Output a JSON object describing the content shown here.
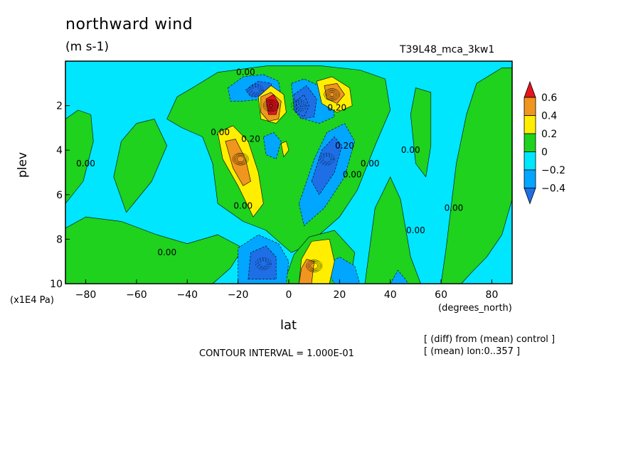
{
  "header": {
    "title": "northward wind",
    "units": "(m s-1)",
    "run_name": "T39L48_mca_3kw1"
  },
  "footer": {
    "contour_interval": "CONTOUR INTERVAL = 1.000E-01",
    "diff_note": "[ (diff) from (mean) control ]",
    "mean_note": "[ (mean) lon:0..357 ]"
  },
  "colors": {
    "le_m04": "#1e6ee6",
    "m04_m02": "#00a6ff",
    "m02_0": "#00e6ff",
    "0_02": "#1ed21e",
    "02_04": "#ffee00",
    "04_06": "#f0961e",
    "ge_06": "#e6141e"
  },
  "chart_data": {
    "type": "heatmap",
    "title": "northward wind",
    "subtitle": "(m s-1)",
    "xlabel": "lat",
    "x_units": "(degrees_north)",
    "ylabel": "plev",
    "y_units": "(x1E4 Pa)",
    "xlim": [
      -88,
      88
    ],
    "ylim": [
      0,
      10
    ],
    "y_inverted": true,
    "x_ticks": [
      -80,
      -60,
      -40,
      -20,
      0,
      20,
      40,
      60,
      80
    ],
    "y_ticks": [
      2,
      4,
      6,
      8,
      10
    ],
    "colorbar": {
      "levels": [
        -0.4,
        -0.2,
        0,
        0.2,
        0.4,
        0.6
      ],
      "labels": [
        "−0.4",
        "−0.2",
        "0",
        "0.2",
        "0.4",
        "0.6"
      ],
      "colors": [
        "#1e6ee6",
        "#00a6ff",
        "#00e6ff",
        "#1ed21e",
        "#ffee00",
        "#f0961e",
        "#e6141e"
      ],
      "extend": "both"
    },
    "contour_labels": [
      {
        "text": "0.00",
        "lat": -17,
        "plev": 0.5
      },
      {
        "text": "0.20",
        "lat": 19,
        "plev": 2.1
      },
      {
        "text": "0.00",
        "lat": -27,
        "plev": 3.2
      },
      {
        "text": "0.20",
        "lat": -15,
        "plev": 3.5
      },
      {
        "text": "0.00",
        "lat": -80,
        "plev": 4.6
      },
      {
        "text": "0.20",
        "lat": 22,
        "plev": 3.8
      },
      {
        "text": "0.00",
        "lat": 32,
        "plev": 4.6
      },
      {
        "text": "0.00",
        "lat": 25,
        "plev": 5.1
      },
      {
        "text": "0.00",
        "lat": 48,
        "plev": 4.0
      },
      {
        "text": "0.00",
        "lat": -18,
        "plev": 6.5
      },
      {
        "text": "0.00",
        "lat": 65,
        "plev": 6.6
      },
      {
        "text": "0.00",
        "lat": 50,
        "plev": 7.6
      },
      {
        "text": "0.00",
        "lat": -48,
        "plev": 8.6
      }
    ],
    "features": [
      {
        "value": 0.6,
        "lat": -7,
        "plev": 2.0,
        "desc": "maximum"
      },
      {
        "value": -0.6,
        "lat": 4,
        "plev": 2.0,
        "desc": "minimum"
      },
      {
        "value": 0.5,
        "lat": 17,
        "plev": 1.5
      },
      {
        "value": -0.4,
        "lat": -13,
        "plev": 1.3
      },
      {
        "value": 0.4,
        "lat": -19,
        "plev": 4.4
      },
      {
        "value": -0.4,
        "lat": 15,
        "plev": 4.4
      },
      {
        "value": -0.4,
        "lat": -10,
        "plev": 9.1
      },
      {
        "value": 0.4,
        "lat": 10,
        "plev": 9.2
      }
    ]
  }
}
